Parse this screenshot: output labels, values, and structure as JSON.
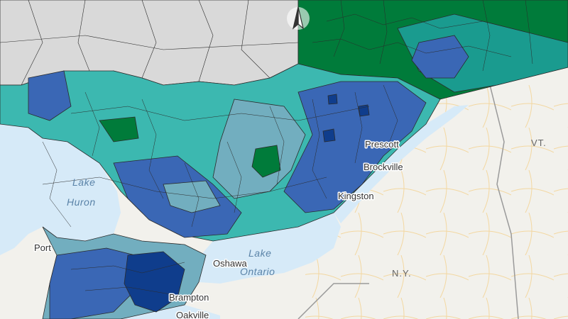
{
  "map": {
    "north_arrow_icon": "north-arrow-icon",
    "water_labels": {
      "huron_1": "Lake",
      "huron_2": "Huron",
      "ontario_1": "Lake",
      "ontario_2": "Ontario"
    },
    "place_labels": {
      "port": "Port",
      "prescott": "Prescott",
      "brockville": "Brockville",
      "kingston": "Kingston",
      "oshawa": "Oshawa",
      "brampton": "Brampton",
      "oakville": "Oakville"
    },
    "state_labels": {
      "vt": "VT.",
      "ny": "N.Y."
    },
    "colors": {
      "water": "#d6eaf8",
      "land": "#f2f1ec",
      "no_data": "#d9d9d9",
      "class_1": "#007b3a",
      "class_2": "#1a9b8f",
      "class_3": "#3cb8b0",
      "class_4": "#72aebf",
      "class_5": "#3a67b5",
      "class_6": "#0f3d8c",
      "boundary": "#2b2b2b"
    }
  }
}
